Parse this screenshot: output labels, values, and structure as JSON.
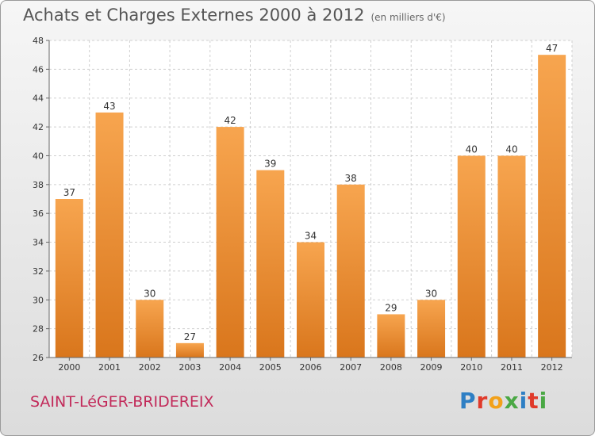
{
  "header": {
    "title": "Achats et Charges Externes 2000 à 2012",
    "subtitle": "(en milliers d'€)"
  },
  "footer": {
    "commune": "SAINT-LéGER-BRIDEREIX",
    "logo": "Proxiti"
  },
  "colors": {
    "bar_top": "#f7a54f",
    "bar_bottom": "#d9761c",
    "commune": "#c22a5a"
  },
  "chart_data": {
    "type": "bar",
    "title": "Achats et Charges Externes 2000 à 2012",
    "subtitle": "(en milliers d'€)",
    "xlabel": "",
    "ylabel": "",
    "categories": [
      "2000",
      "2001",
      "2002",
      "2003",
      "2004",
      "2005",
      "2006",
      "2007",
      "2008",
      "2009",
      "2010",
      "2011",
      "2012"
    ],
    "values": [
      37,
      43,
      30,
      27,
      42,
      39,
      34,
      38,
      29,
      30,
      40,
      40,
      47
    ],
    "ylim": [
      26,
      48
    ],
    "yticks": [
      26,
      28,
      30,
      32,
      34,
      36,
      38,
      40,
      42,
      44,
      46,
      48
    ],
    "grid": true,
    "legend": "none"
  }
}
